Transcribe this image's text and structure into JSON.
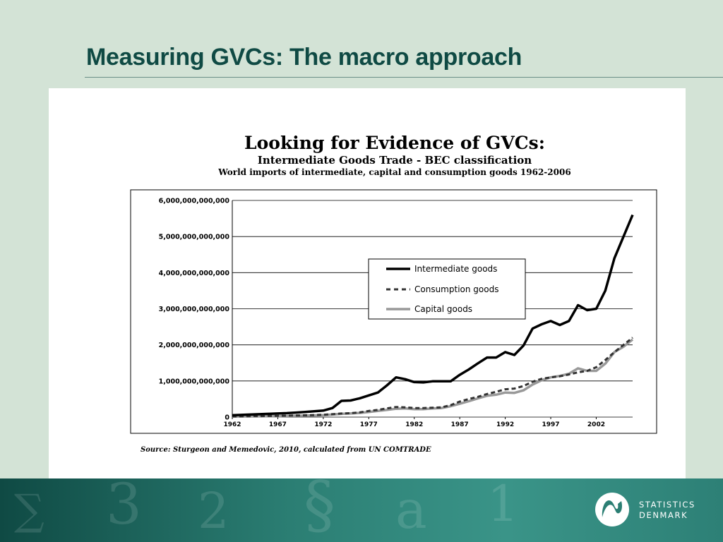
{
  "slide": {
    "title": "Measuring GVCs: The macro approach"
  },
  "chart_data": {
    "type": "line",
    "heading": "Looking for Evidence of GVCs:",
    "subheading": "Intermediate Goods Trade - BEC classification",
    "title": "World imports of intermediate, capital and consumption goods 1962-2006",
    "source": "Source: Sturgeon and Memedovic, 2010, calculated from UN COMTRADE",
    "xlabel": "",
    "ylabel": "",
    "xlim": [
      1962,
      2006
    ],
    "ylim": [
      0,
      6000000000000
    ],
    "x_ticks": [
      1962,
      1967,
      1972,
      1977,
      1982,
      1987,
      1992,
      1997,
      2002
    ],
    "y_ticks": [
      0,
      1000000000000,
      2000000000000,
      3000000000000,
      4000000000000,
      5000000000000,
      6000000000000
    ],
    "y_tick_labels": [
      "0",
      "1,000,000,000,000",
      "2,000,000,000,000",
      "3,000,000,000,000",
      "4,000,000,000,000",
      "5,000,000,000,000",
      "6,000,000,000,000"
    ],
    "grid": "horizontal",
    "legend_position": "center-right",
    "x": [
      1962,
      1963,
      1964,
      1965,
      1966,
      1967,
      1968,
      1969,
      1970,
      1971,
      1972,
      1973,
      1974,
      1975,
      1976,
      1977,
      1978,
      1979,
      1980,
      1981,
      1982,
      1983,
      1984,
      1985,
      1986,
      1987,
      1988,
      1989,
      1990,
      1991,
      1992,
      1993,
      1994,
      1995,
      1996,
      1997,
      1998,
      1999,
      2000,
      2001,
      2002,
      2003,
      2004,
      2005,
      2006
    ],
    "series": [
      {
        "name": "Intermediate goods",
        "style": "solid",
        "color": "#000000",
        "values": [
          50000000000,
          60000000000,
          70000000000,
          80000000000,
          90000000000,
          100000000000,
          110000000000,
          125000000000,
          140000000000,
          160000000000,
          180000000000,
          250000000000,
          450000000000,
          460000000000,
          520000000000,
          600000000000,
          680000000000,
          880000000000,
          1100000000000,
          1050000000000,
          970000000000,
          960000000000,
          990000000000,
          990000000000,
          990000000000,
          1170000000000,
          1320000000000,
          1490000000000,
          1650000000000,
          1650000000000,
          1800000000000,
          1720000000000,
          1980000000000,
          2450000000000,
          2570000000000,
          2660000000000,
          2550000000000,
          2660000000000,
          3100000000000,
          2960000000000,
          3000000000000,
          3500000000000,
          4400000000000,
          5000000000000,
          5600000000000
        ]
      },
      {
        "name": "Consumption goods",
        "style": "dashed",
        "color": "#333333",
        "values": [
          20000000000,
          22000000000,
          25000000000,
          28000000000,
          32000000000,
          35000000000,
          40000000000,
          45000000000,
          50000000000,
          57000000000,
          65000000000,
          80000000000,
          100000000000,
          110000000000,
          130000000000,
          170000000000,
          200000000000,
          240000000000,
          280000000000,
          270000000000,
          250000000000,
          250000000000,
          260000000000,
          270000000000,
          330000000000,
          430000000000,
          500000000000,
          560000000000,
          640000000000,
          700000000000,
          770000000000,
          790000000000,
          860000000000,
          980000000000,
          1060000000000,
          1100000000000,
          1130000000000,
          1180000000000,
          1240000000000,
          1280000000000,
          1380000000000,
          1580000000000,
          1800000000000,
          2000000000000,
          2200000000000
        ]
      },
      {
        "name": "Capital goods",
        "style": "solid",
        "color": "#999999",
        "values": [
          15000000000,
          18000000000,
          20000000000,
          22000000000,
          25000000000,
          28000000000,
          32000000000,
          37000000000,
          42000000000,
          47000000000,
          55000000000,
          70000000000,
          90000000000,
          100000000000,
          115000000000,
          140000000000,
          170000000000,
          200000000000,
          230000000000,
          240000000000,
          220000000000,
          220000000000,
          240000000000,
          250000000000,
          300000000000,
          370000000000,
          440000000000,
          520000000000,
          590000000000,
          620000000000,
          680000000000,
          670000000000,
          740000000000,
          900000000000,
          1020000000000,
          1100000000000,
          1140000000000,
          1200000000000,
          1350000000000,
          1280000000000,
          1280000000000,
          1480000000000,
          1800000000000,
          1950000000000,
          2150000000000
        ]
      }
    ]
  },
  "logo": {
    "line1": "STATISTICS",
    "line2": "DENMARK"
  },
  "colors": {
    "title": "#0f4a44",
    "background": "#d3e3d6",
    "footer": "#2b7e73"
  }
}
